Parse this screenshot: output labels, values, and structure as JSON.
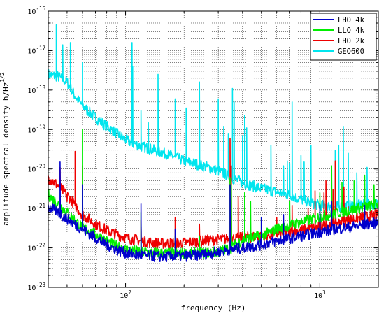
{
  "chart_data": {
    "type": "line",
    "title": "",
    "xlabel": "frequency (Hz)",
    "ylabel": "amplitude spectral density h/Hz",
    "ylabel_sup": "1/2",
    "xscale": "log",
    "yscale": "log",
    "xlim": [
      40,
      2000
    ],
    "ylim": [
      1e-23,
      1e-16
    ],
    "grid": true,
    "legend_position": "top-right",
    "x_ticks": [
      {
        "value": 100,
        "base": "10",
        "exp": "2"
      },
      {
        "value": 1000,
        "base": "10",
        "exp": "3"
      }
    ],
    "y_ticks": [
      {
        "value": 1e-16,
        "base": "10",
        "exp": "-16"
      },
      {
        "value": 1e-17,
        "base": "10",
        "exp": "-17"
      },
      {
        "value": 1e-18,
        "base": "10",
        "exp": "-18"
      },
      {
        "value": 1e-19,
        "base": "10",
        "exp": "-19"
      },
      {
        "value": 1e-20,
        "base": "10",
        "exp": "-20"
      },
      {
        "value": 1e-21,
        "base": "10",
        "exp": "-21"
      },
      {
        "value": 1e-22,
        "base": "10",
        "exp": "-22"
      },
      {
        "value": 1e-23,
        "base": "10",
        "exp": "-23"
      }
    ],
    "series": [
      {
        "name": "GEO600",
        "color": "#00e5ee",
        "x": [
          40,
          45,
          50,
          55,
          60,
          70,
          80,
          90,
          100,
          110,
          120,
          140,
          160,
          180,
          200,
          250,
          300,
          350,
          400,
          500,
          600,
          700,
          800,
          900,
          1000,
          1200,
          1500,
          2000
        ],
        "y": [
          2.5e-18,
          2.2e-18,
          1.6e-18,
          7e-19,
          4e-19,
          2e-19,
          1.2e-19,
          8e-20,
          5.5e-20,
          4.5e-20,
          3.8e-20,
          3e-20,
          2.5e-20,
          2e-20,
          1.6e-20,
          1.2e-20,
          9e-21,
          6e-21,
          4.5e-21,
          3.2e-21,
          2.6e-21,
          2.2e-21,
          1.7e-21,
          1.4e-21,
          1.2e-21,
          1.1e-21,
          1.2e-21,
          1.3e-21
        ],
        "peaks": [
          [
            44,
            4.5e-17
          ],
          [
            47.5,
            1.4e-17
          ],
          [
            52,
            1.6e-17
          ],
          [
            60,
            5e-18
          ],
          [
            108,
            1.6e-17
          ],
          [
            108.8,
            4e-18
          ],
          [
            120,
            3e-19
          ],
          [
            131,
            1.5e-19
          ],
          [
            147,
            2.5e-18
          ],
          [
            180,
            6e-19
          ],
          [
            205,
            3.5e-19
          ],
          [
            240,
            1.6e-18
          ],
          [
            300,
            6e-19
          ],
          [
            320,
            1.2e-19
          ],
          [
            338,
            8e-20
          ],
          [
            355,
            1.1e-18
          ],
          [
            362,
            5e-19
          ],
          [
            400,
            7e-20
          ],
          [
            410,
            2.3e-19
          ],
          [
            420,
            1.1e-19
          ],
          [
            560,
            4e-20
          ],
          [
            650,
            1.2e-20
          ],
          [
            680,
            1.6e-20
          ],
          [
            700,
            1.4e-20
          ],
          [
            720,
            5e-19
          ],
          [
            800,
            2.2e-20
          ],
          [
            830,
            1.5e-20
          ],
          [
            900,
            4e-20
          ],
          [
            1200,
            3e-20
          ],
          [
            1250,
            4e-20
          ],
          [
            1320,
            1.2e-19
          ],
          [
            1400,
            2.5e-20
          ],
          [
            1550,
            8e-21
          ],
          [
            1750,
            1.1e-20
          ]
        ]
      },
      {
        "name": "LHO 2k",
        "color": "#ee0000",
        "x": [
          40,
          45,
          50,
          55,
          60,
          70,
          80,
          90,
          100,
          120,
          150,
          200,
          250,
          300,
          350,
          400,
          500,
          600,
          800,
          1000,
          1200,
          1500,
          2000
        ],
        "y": [
          6e-21,
          3.8e-21,
          2.2e-21,
          1.2e-21,
          7e-22,
          4e-22,
          2.8e-22,
          2.2e-22,
          1.8e-22,
          1.5e-22,
          1.3e-22,
          1.35e-22,
          1.5e-22,
          1.65e-22,
          1.7e-22,
          1.8e-22,
          2e-22,
          2.3e-22,
          2.8e-22,
          3.5e-22,
          4.2e-22,
          5.5e-22,
          7e-22
        ],
        "peaks": [
          [
            46,
            1.1e-20
          ],
          [
            50,
            1.5e-21
          ],
          [
            55,
            2.8e-20
          ],
          [
            60,
            1.2e-20
          ],
          [
            120,
            5e-22
          ],
          [
            180,
            6e-22
          ],
          [
            240,
            4e-22
          ],
          [
            345,
            6e-20
          ],
          [
            350,
            1.2e-20
          ],
          [
            380,
            2e-21
          ],
          [
            600,
            6e-22
          ],
          [
            720,
            1.2e-21
          ],
          [
            870,
            1e-21
          ],
          [
            945,
            2.8e-21
          ],
          [
            1050,
            2.5e-21
          ],
          [
            1075,
            5e-21
          ],
          [
            1150,
            2e-21
          ],
          [
            1170,
            3e-21
          ],
          [
            1200,
            1.6e-20
          ],
          [
            1330,
            3.5e-21
          ],
          [
            1400,
            1.1e-21
          ]
        ]
      },
      {
        "name": "LLO 4k",
        "color": "#00ee00",
        "x": [
          40,
          45,
          50,
          55,
          60,
          70,
          80,
          90,
          100,
          120,
          150,
          200,
          250,
          300,
          350,
          400,
          500,
          600,
          800,
          1000,
          1200,
          1500,
          2000
        ],
        "y": [
          2.2e-21,
          1.3e-21,
          8e-22,
          5e-22,
          3.3e-22,
          2.2e-22,
          1.5e-22,
          1.1e-22,
          9e-23,
          8e-23,
          7.5e-23,
          7.2e-23,
          7.5e-23,
          8e-23,
          1e-22,
          1.6e-22,
          2e-22,
          3e-22,
          4.5e-22,
          6e-22,
          7.5e-22,
          9.5e-22,
          1.3e-21
        ],
        "peaks": [
          [
            60,
            1e-19
          ],
          [
            120,
            8e-22
          ],
          [
            180,
            2e-22
          ],
          [
            240,
            2e-22
          ],
          [
            345,
            6e-21
          ],
          [
            350,
            4e-21
          ],
          [
            410,
            2.5e-21
          ],
          [
            440,
            1.5e-21
          ],
          [
            500,
            6e-22
          ],
          [
            700,
            1.5e-21
          ],
          [
            1000,
            2.5e-21
          ],
          [
            1150,
            1.2e-20
          ],
          [
            1300,
            4.5e-21
          ],
          [
            1500,
            5e-21
          ],
          [
            1700,
            7e-21
          ],
          [
            1900,
            4e-21
          ]
        ]
      },
      {
        "name": "LHO 4k",
        "color": "#0000cc",
        "x": [
          40,
          45,
          50,
          55,
          60,
          70,
          80,
          90,
          100,
          120,
          150,
          200,
          250,
          300,
          350,
          400,
          500,
          600,
          800,
          1000,
          1200,
          1500,
          2000
        ],
        "y": [
          1.1e-21,
          8e-22,
          5.5e-22,
          4e-22,
          3e-22,
          1.8e-22,
          1.2e-22,
          9e-23,
          7.5e-23,
          6.5e-23,
          6e-23,
          6.2e-23,
          6.8e-23,
          8e-23,
          9e-23,
          1e-22,
          1.2e-22,
          1.5e-22,
          2e-22,
          2.5e-22,
          3e-22,
          3.5e-22,
          4.5e-22
        ],
        "peaks": [
          [
            46,
            1.5e-20
          ],
          [
            60,
            4e-21
          ],
          [
            120,
            1.3e-21
          ],
          [
            180,
            3e-22
          ],
          [
            345,
            4e-21
          ],
          [
            500,
            6e-22
          ],
          [
            650,
            7e-22
          ],
          [
            1000,
            1.2e-21
          ],
          [
            1150,
            1.5e-21
          ],
          [
            1700,
            1.2e-21
          ]
        ]
      }
    ]
  },
  "legend": {
    "entries": [
      {
        "label": "LHO 4k",
        "color": "#0000cc"
      },
      {
        "label": "LLO 4k",
        "color": "#00ee00"
      },
      {
        "label": "LHO 2k",
        "color": "#ee0000"
      },
      {
        "label": "GEO600",
        "color": "#00e5ee"
      }
    ]
  }
}
